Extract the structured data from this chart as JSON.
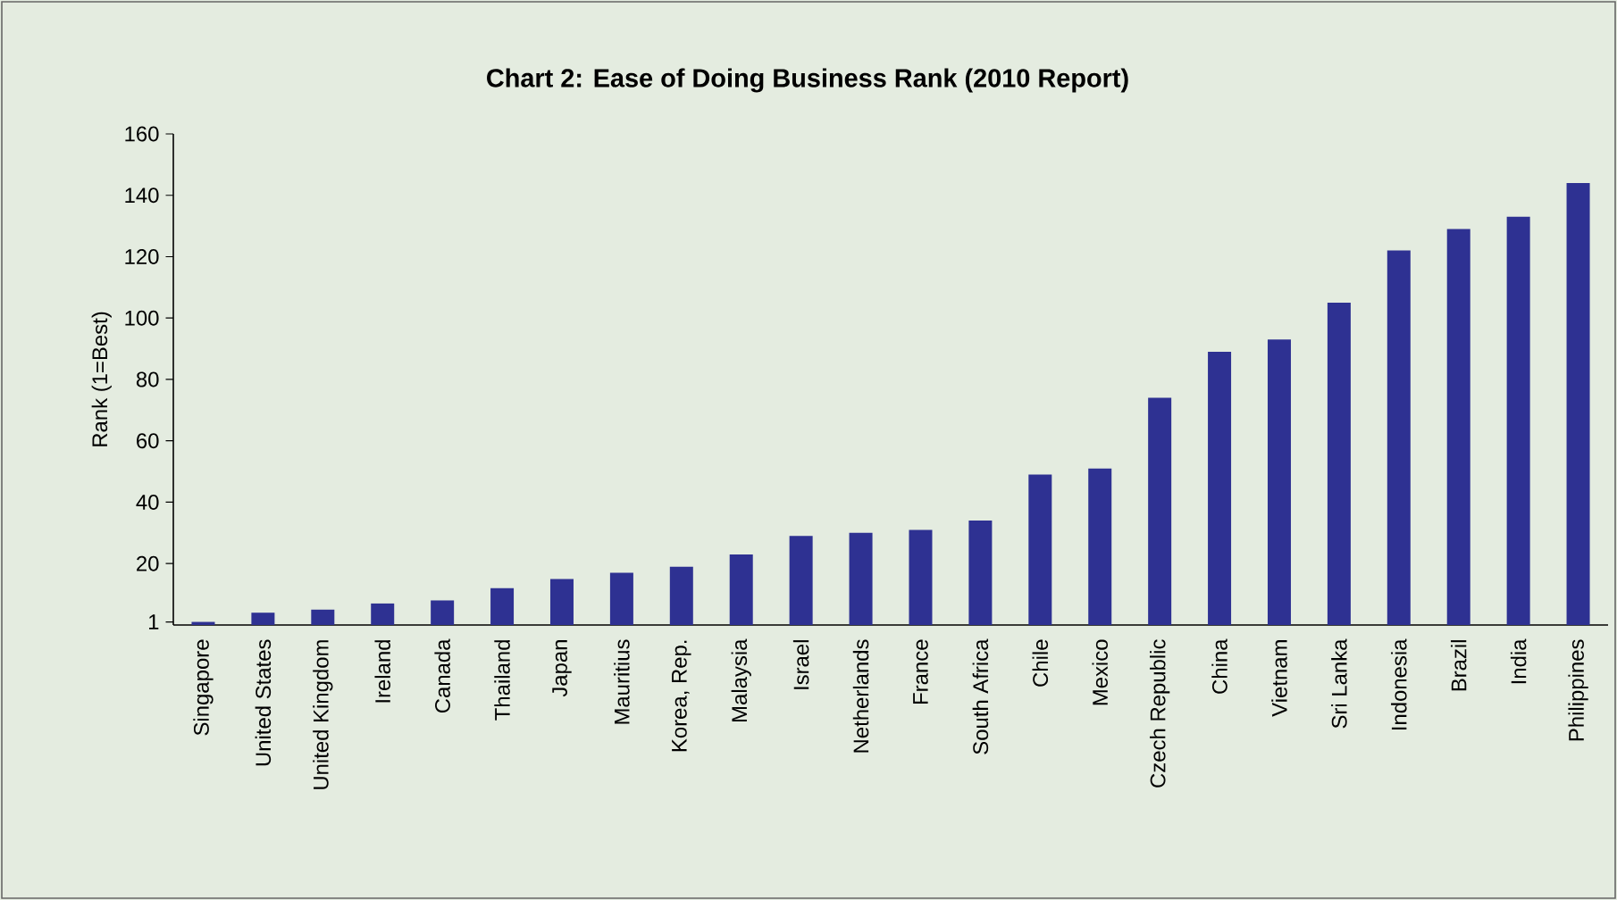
{
  "chart_data": {
    "type": "bar",
    "title": "Chart 2: Ease of Doing Business Rank (2010 Report)",
    "ylabel": "Rank (1=Best)",
    "categories": [
      "Singapore",
      "United States",
      "United Kingdom",
      "Ireland",
      "Canada",
      "Thailand",
      "Japan",
      "Mauritius",
      "Korea, Rep.",
      "Malaysia",
      "Israel",
      "Netherlands",
      "France",
      "South Africa",
      "Chile",
      "Mexico",
      "Czech Republic",
      "China",
      "Vietnam",
      "Sri Lanka",
      "Indonesia",
      "Brazil",
      "India",
      "Philippines"
    ],
    "values": [
      1,
      4,
      5,
      7,
      8,
      12,
      15,
      17,
      19,
      23,
      29,
      30,
      31,
      34,
      49,
      51,
      74,
      89,
      93,
      105,
      122,
      129,
      133,
      144
    ],
    "color": "#2e3192",
    "ylim": [
      0,
      160
    ],
    "yticks": [
      1,
      20,
      40,
      60,
      80,
      100,
      120,
      140,
      160
    ],
    "grid": false
  }
}
